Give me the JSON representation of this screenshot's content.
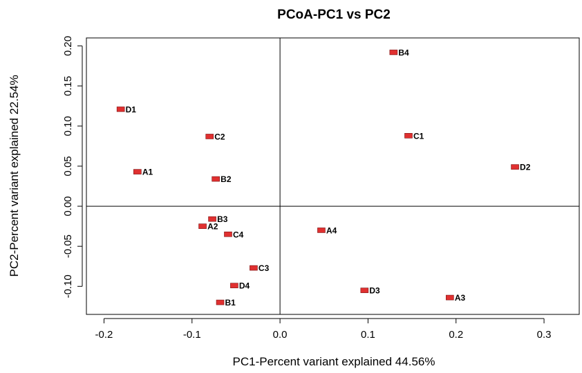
{
  "chart_data": {
    "type": "scatter",
    "title": "PCoA-PC1 vs PC2",
    "xlabel": "PC1-Percent variant explained 44.56%",
    "ylabel": "PC2-Percent variant explained 22.54%",
    "xlim": [
      -0.22,
      0.34
    ],
    "ylim": [
      -0.135,
      0.21
    ],
    "x_ticks": [
      -0.2,
      -0.1,
      0.0,
      0.1,
      0.2,
      0.3
    ],
    "x_tick_labels": [
      "-0.2",
      "-0.1",
      "0.0",
      "0.1",
      "0.2",
      "0.3"
    ],
    "y_ticks": [
      -0.1,
      -0.05,
      0.0,
      0.05,
      0.1,
      0.15,
      0.2
    ],
    "y_tick_labels": [
      "-0.10",
      "-0.05",
      "0.00",
      "0.05",
      "0.10",
      "0.15",
      "0.20"
    ],
    "grid": false,
    "reference_lines": {
      "x": 0.0,
      "y": 0.0
    },
    "marker_color": "#e03030",
    "points": [
      {
        "label": "B4",
        "x": 0.129,
        "y": 0.192
      },
      {
        "label": "D1",
        "x": -0.181,
        "y": 0.121
      },
      {
        "label": "C1",
        "x": 0.146,
        "y": 0.088
      },
      {
        "label": "C2",
        "x": -0.08,
        "y": 0.087
      },
      {
        "label": "D2",
        "x": 0.267,
        "y": 0.049
      },
      {
        "label": "A1",
        "x": -0.162,
        "y": 0.043
      },
      {
        "label": "B2",
        "x": -0.073,
        "y": 0.034
      },
      {
        "label": "B3",
        "x": -0.077,
        "y": -0.016
      },
      {
        "label": "A2",
        "x": -0.088,
        "y": -0.025
      },
      {
        "label": "A4",
        "x": 0.047,
        "y": -0.03
      },
      {
        "label": "C4",
        "x": -0.059,
        "y": -0.035
      },
      {
        "label": "C3",
        "x": -0.03,
        "y": -0.077
      },
      {
        "label": "D4",
        "x": -0.052,
        "y": -0.099
      },
      {
        "label": "D3",
        "x": 0.096,
        "y": -0.105
      },
      {
        "label": "A3",
        "x": 0.193,
        "y": -0.114
      },
      {
        "label": "B1",
        "x": -0.068,
        "y": -0.12
      }
    ]
  }
}
